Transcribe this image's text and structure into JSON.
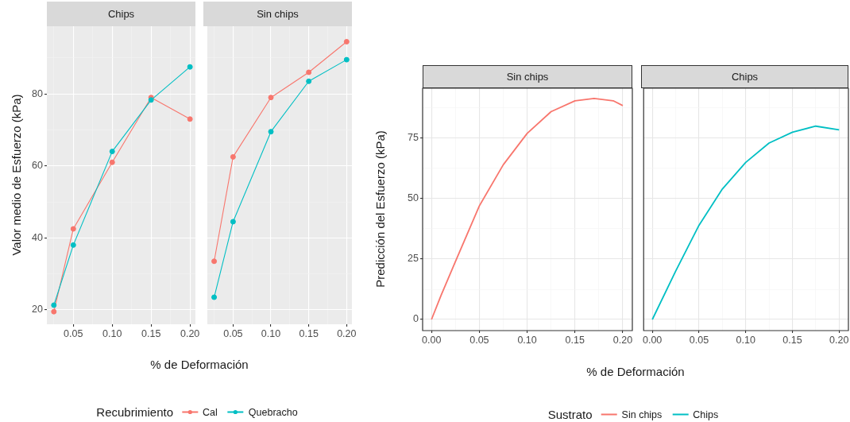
{
  "chart_data": [
    {
      "type": "line",
      "title": "Chips",
      "xlabel": "% de Deformación",
      "ylabel": "Valor medio de Esfuerzo (kPa)",
      "legend_title": "Recubrimiento",
      "legend": "bottom",
      "marker": "circle",
      "grid": true,
      "x": [
        0.025,
        0.05,
        0.1,
        0.15,
        0.2
      ],
      "xlim": [
        0.016,
        0.207
      ],
      "ylim": [
        16,
        98.8
      ],
      "xticks": [
        {
          "value": 0.05,
          "label": "0.05"
        },
        {
          "value": 0.1,
          "label": "0.10"
        },
        {
          "value": 0.15,
          "label": "0.15"
        },
        {
          "value": 0.2,
          "label": "0.20"
        }
      ],
      "yticks": [
        20,
        40,
        60,
        80
      ],
      "series": [
        {
          "name": "Cal",
          "color": "#f8766d",
          "values": [
            19.5,
            42.5,
            61,
            79,
            73
          ]
        },
        {
          "name": "Quebracho",
          "color": "#00bfc4",
          "values": [
            21.3,
            38,
            64,
            78.3,
            87.5
          ]
        }
      ]
    },
    {
      "type": "line",
      "title": "Sin chips",
      "marker": "circle",
      "grid": true,
      "tick_labels": "x",
      "x": [
        0.025,
        0.05,
        0.1,
        0.15,
        0.2
      ],
      "xlim": [
        0.016,
        0.207
      ],
      "ylim": [
        16,
        98.8
      ],
      "xticks": [
        {
          "value": 0.05,
          "label": "0.05"
        },
        {
          "value": 0.1,
          "label": "0.10"
        },
        {
          "value": 0.15,
          "label": "0.15"
        },
        {
          "value": 0.2,
          "label": "0.20"
        }
      ],
      "yticks": [
        20,
        40,
        60,
        80
      ],
      "series": [
        {
          "name": "Cal",
          "color": "#f8766d",
          "values": [
            33.5,
            62.5,
            79,
            86,
            94.5
          ]
        },
        {
          "name": "Quebracho",
          "color": "#00bfc4",
          "values": [
            23.5,
            44.5,
            69.5,
            83.5,
            89.5
          ]
        }
      ]
    },
    {
      "type": "line",
      "title": "Sin chips",
      "xlabel": "% de Deformación",
      "ylabel": "Predicción del Esfuerzo (kPa)",
      "legend_title": "Sustrato",
      "legend": "bottom",
      "grid": true,
      "x": [
        0,
        0.01,
        0.025,
        0.05,
        0.075,
        0.1,
        0.125,
        0.15,
        0.17,
        0.19,
        0.2
      ],
      "xlim": [
        -0.0093,
        0.21
      ],
      "ylim": [
        -4.6,
        95.7
      ],
      "xticks": [
        {
          "value": 0,
          "label": "0.00"
        },
        {
          "value": 0.05,
          "label": "0.05"
        },
        {
          "value": 0.1,
          "label": "0.10"
        },
        {
          "value": 0.15,
          "label": "0.15"
        },
        {
          "value": 0.2,
          "label": "0.20"
        }
      ],
      "yticks": [
        0,
        25,
        50,
        75
      ],
      "series": [
        {
          "name": "Sin chips",
          "color": "#f8766d",
          "values": [
            0,
            10,
            24,
            47,
            64,
            77,
            86,
            90.5,
            91.5,
            90.5,
            88.5
          ]
        }
      ]
    },
    {
      "type": "line",
      "title": "Chips",
      "grid": true,
      "tick_labels": "x",
      "x": [
        0,
        0.025,
        0.05,
        0.075,
        0.1,
        0.125,
        0.15,
        0.175,
        0.2
      ],
      "xlim": [
        -0.0093,
        0.21
      ],
      "ylim": [
        -4.6,
        95.7
      ],
      "xticks": [
        {
          "value": 0,
          "label": "0.00"
        },
        {
          "value": 0.05,
          "label": "0.05"
        },
        {
          "value": 0.1,
          "label": "0.10"
        },
        {
          "value": 0.15,
          "label": "0.15"
        },
        {
          "value": 0.2,
          "label": "0.20"
        }
      ],
      "yticks": [
        0,
        25,
        50,
        75
      ],
      "series": [
        {
          "name": "Chips",
          "color": "#00bfc4",
          "values": [
            0,
            20,
            39,
            54,
            65,
            73,
            77.5,
            80,
            78.5
          ]
        }
      ]
    }
  ]
}
